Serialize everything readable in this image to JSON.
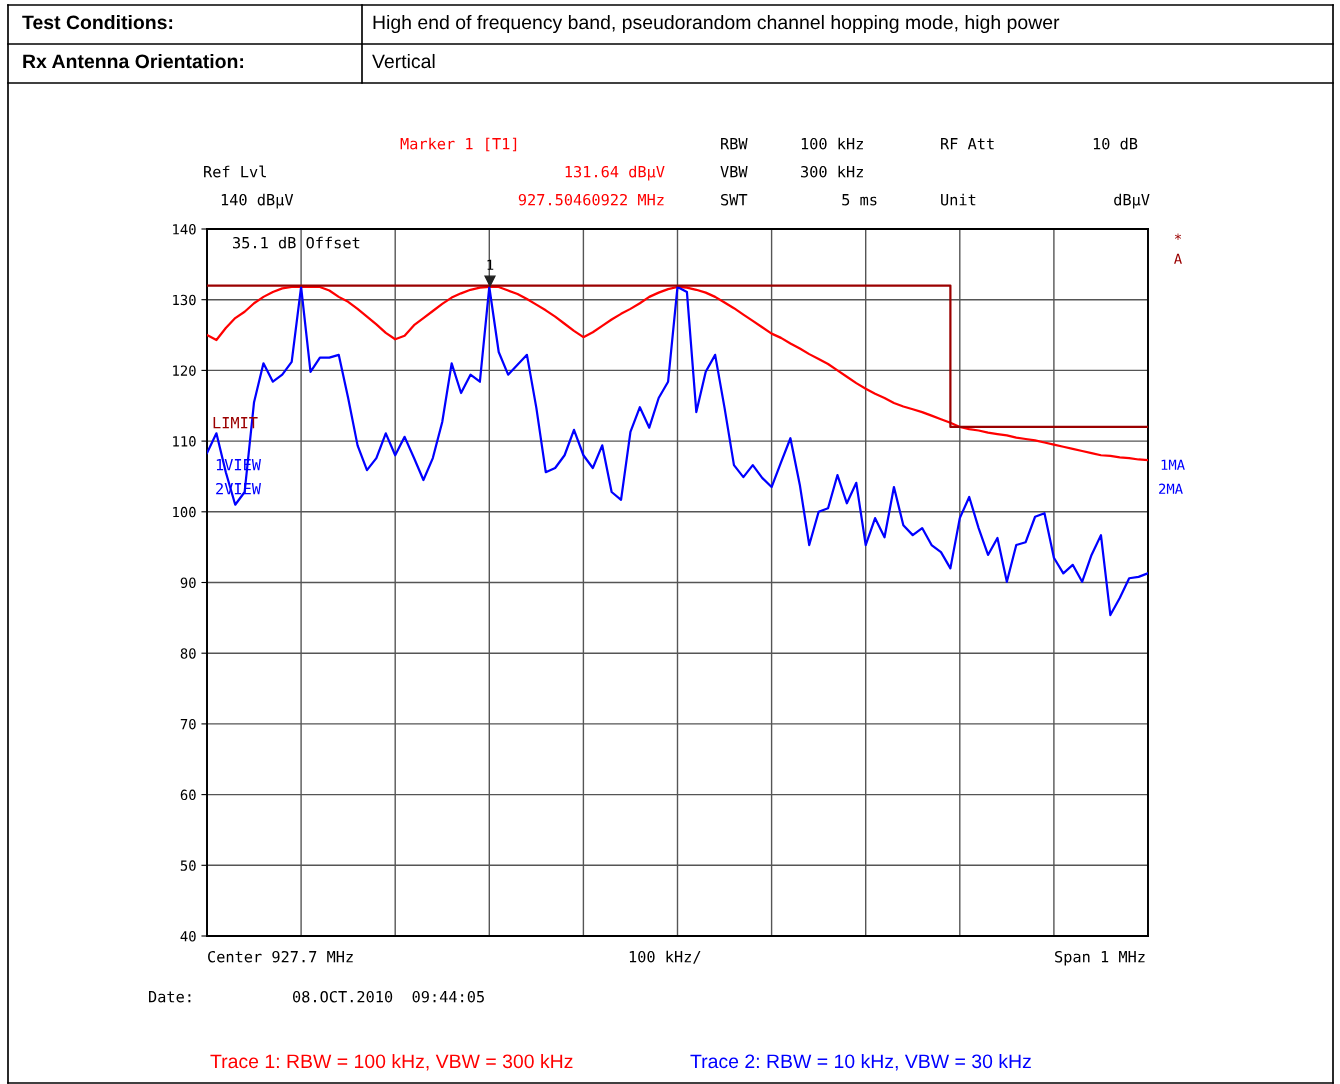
{
  "chart_data": {
    "type": "line",
    "annotations": [
      "Test Conditions:",
      "High end of frequency band, pseudorandom channel hopping mode, high power",
      "Rx Antenna Orientation:",
      "Vertical",
      "Ref Lvl",
      "140 dBµV",
      "Marker 1 [T1]",
      "131.64 dBµV",
      "927.50460922 MHz",
      "RBW",
      "100 kHz",
      "RF Att",
      "10 dB",
      "VBW",
      "300 kHz",
      "SWT",
      "5 ms",
      "Unit",
      "dBµV",
      "35.1 dB Offset",
      "LIMIT",
      "1VIEW",
      "2VIEW",
      "1MA",
      "2MA",
      "*",
      "A",
      "Center 927.7 MHz",
      "100 kHz/",
      "Span 1 MHz",
      "Date:",
      "08.OCT.2010  09:44:05",
      "Trace 1: RBW = 100 kHz, VBW = 300 kHz",
      "Trace 2: RBW = 10 kHz, VBW = 30 kHz",
      "1"
    ],
    "categories": [
      null,
      null,
      null,
      null,
      null,
      null,
      null,
      null,
      null,
      null,
      null,
      null,
      null,
      null,
      null,
      null,
      null,
      null,
      null,
      null,
      null,
      null,
      null,
      null,
      null,
      null,
      null,
      null,
      null,
      null,
      null,
      null,
      null,
      null,
      null,
      null,
      null,
      null,
      null,
      null,
      null,
      null,
      null,
      null,
      null,
      null,
      null,
      null,
      null,
      null,
      null,
      null,
      null,
      null,
      null,
      null,
      null,
      null,
      null,
      null,
      null,
      null,
      null,
      null,
      null,
      null,
      null,
      null,
      null,
      null,
      null,
      null,
      null,
      null,
      null,
      null,
      null,
      null,
      null,
      null,
      null,
      null,
      null,
      null,
      null,
      null,
      null,
      null,
      null,
      null,
      null,
      null,
      null,
      null,
      null,
      null,
      null,
      null,
      null,
      null,
      null
    ],
    "series": [
      {
        "color": "#ff0000",
        "values": [
          125,
          124.3,
          126,
          127.4,
          128.3,
          129.5,
          130.4,
          131.1,
          131.6,
          131.8,
          131.8,
          131.8,
          131.8,
          131.3,
          130.4,
          129.7,
          128.7,
          127.6,
          126.5,
          125.3,
          124.4,
          124.9,
          126.4,
          127.4,
          128.4,
          129.4,
          130.3,
          130.9,
          131.4,
          131.7,
          131.8,
          131.8,
          131.3,
          130.8,
          130.1,
          129.3,
          128.5,
          127.6,
          126.6,
          125.6,
          124.7,
          125.4,
          126.3,
          127.2,
          128,
          128.7,
          129.5,
          130.4,
          131,
          131.5,
          131.8,
          131.7,
          131.4,
          131,
          130.4,
          129.6,
          128.8,
          127.9,
          127,
          126.1,
          125.2,
          124.6,
          123.8,
          123.1,
          122.3,
          121.6,
          120.9,
          120,
          119.1,
          118.2,
          117.4,
          116.7,
          116.1,
          115.4,
          114.9,
          114.5,
          114.1,
          113.6,
          113.1,
          112.6,
          112,
          111.7,
          111.5,
          111.2,
          111,
          110.8,
          110.5,
          110.3,
          110.1,
          109.8,
          109.5,
          109.2,
          108.9,
          108.6,
          108.3,
          108,
          107.9,
          107.7,
          107.6,
          107.4,
          107.3
        ]
      },
      {
        "color": "#0000ff",
        "values": [
          108.3,
          111.1,
          105.6,
          101,
          102.8,
          115.5,
          121,
          118.4,
          119.4,
          121.2,
          131.8,
          119.8,
          121.8,
          121.8,
          122.2,
          116.1,
          109.4,
          105.9,
          107.6,
          111.1,
          108,
          110.6,
          107.6,
          104.5,
          107.6,
          112.7,
          121,
          116.8,
          119.4,
          118.4,
          131.8,
          122.6,
          119.4,
          120.8,
          122.2,
          114.7,
          105.6,
          106.2,
          108,
          111.6,
          108,
          106.2,
          109.4,
          102.8,
          101.7,
          111.3,
          114.8,
          111.9,
          116.1,
          118.4,
          131.8,
          131.1,
          114.1,
          119.8,
          122.2,
          114.7,
          106.6,
          104.9,
          106.6,
          104.8,
          103.5,
          107,
          110.4,
          103.8,
          95.3,
          100,
          100.5,
          105.2,
          101.2,
          104.1,
          95.3,
          99.1,
          96.4,
          103.5,
          98.1,
          96.7,
          97.7,
          95.3,
          94.3,
          92,
          99.1,
          102.1,
          97.7,
          93.9,
          96.3,
          90.1,
          95.3,
          95.7,
          99.3,
          99.8,
          93.5,
          91.3,
          92.5,
          90.1,
          93.9,
          96.7,
          85.4,
          87.8,
          90.6,
          90.8,
          91.3
        ]
      },
      {
        "color": "#9b0000",
        "type": "step",
        "values": [
          132,
          132,
          132,
          132,
          132,
          132,
          132,
          132,
          132,
          132,
          132,
          132,
          132,
          132,
          132,
          132,
          132,
          132,
          132,
          132,
          132,
          132,
          132,
          132,
          132,
          132,
          132,
          132,
          132,
          132,
          132,
          132,
          132,
          132,
          132,
          132,
          132,
          132,
          132,
          132,
          132,
          132,
          132,
          132,
          132,
          132,
          132,
          132,
          132,
          132,
          132,
          132,
          132,
          132,
          132,
          132,
          132,
          132,
          132,
          132,
          132,
          132,
          132,
          132,
          132,
          132,
          132,
          132,
          132,
          132,
          132,
          132,
          132,
          132,
          132,
          132,
          132,
          132,
          132,
          132,
          112,
          112,
          112,
          112,
          112,
          112,
          112,
          112,
          112,
          112,
          112,
          112,
          112,
          112,
          112,
          112,
          112,
          112,
          112,
          112,
          112
        ]
      }
    ],
    "ylim": [
      40,
      140
    ],
    "yticks": [
      40,
      50,
      60,
      70,
      80,
      90,
      100,
      110,
      120,
      130,
      140
    ],
    "tick_labels": "y",
    "grid": true,
    "legend": false,
    "marker": "none",
    "line_style": "solid"
  }
}
